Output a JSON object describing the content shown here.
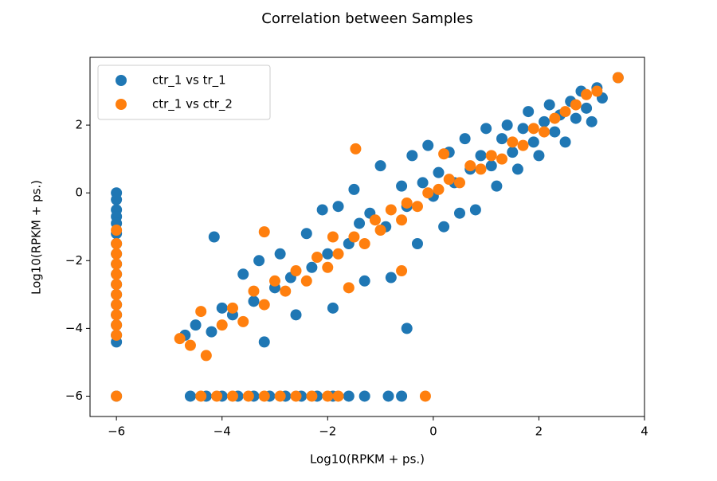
{
  "chart_data": {
    "type": "scatter",
    "title": "Correlation between Samples",
    "xlabel": "Log10(RPKM + ps.)",
    "ylabel": "Log10(RPKM + ps.)",
    "xlim": [
      -6.5,
      4.0
    ],
    "ylim": [
      -6.6,
      4.0
    ],
    "xticks": [
      {
        "value": -6,
        "label": "−6"
      },
      {
        "value": -4,
        "label": "−4"
      },
      {
        "value": -2,
        "label": "−2"
      },
      0,
      2,
      4
    ],
    "yticks": [
      {
        "value": -6,
        "label": "−6"
      },
      {
        "value": -4,
        "label": "−4"
      },
      {
        "value": -2,
        "label": "−2"
      },
      0,
      2
    ],
    "legend": "upper left",
    "series": [
      {
        "name": "ctr_1 vs tr_1",
        "color": "#1f77b4",
        "x": [
          -6,
          -6,
          -6,
          -6,
          -6,
          -6,
          -6,
          -6,
          -6,
          -6,
          -6,
          -6,
          -6,
          -6,
          -6,
          -6,
          -6,
          -6,
          -4.6,
          -4.3,
          -4.0,
          -3.7,
          -3.4,
          -3.1,
          -2.8,
          -2.5,
          -2.2,
          -1.9,
          -1.6,
          -1.3,
          -0.85,
          -0.6,
          -4.7,
          -4.5,
          -4.2,
          -4.0,
          -3.8,
          -3.6,
          -3.4,
          -3.3,
          -3.2,
          -3.0,
          -2.9,
          -2.7,
          -2.6,
          -2.4,
          -2.3,
          -2.1,
          -2.0,
          -1.9,
          -1.8,
          -1.6,
          -1.5,
          -1.4,
          -1.3,
          -1.2,
          -1.0,
          -0.9,
          -0.8,
          -0.6,
          -0.5,
          -0.4,
          -0.3,
          -0.2,
          -0.1,
          0,
          0.1,
          0.2,
          0.3,
          0.4,
          0.5,
          0.6,
          0.7,
          0.8,
          0.9,
          1.0,
          1.1,
          1.2,
          1.3,
          1.4,
          1.5,
          1.6,
          1.7,
          1.8,
          1.9,
          2.0,
          2.1,
          2.2,
          2.3,
          2.4,
          2.5,
          2.6,
          2.7,
          2.8,
          2.9,
          3.0,
          3.1,
          3.2,
          3.5,
          -4.15,
          -0.5
        ],
        "values": [
          0,
          -0.2,
          -0.5,
          -0.7,
          -0.9,
          -1.2,
          -1.5,
          -1.8,
          -2.1,
          -2.4,
          -2.7,
          -3.0,
          -3.3,
          -3.6,
          -3.9,
          -4.2,
          -4.4,
          -6,
          -6,
          -6,
          -6,
          -6,
          -6,
          -6,
          -6,
          -6,
          -6,
          -6,
          -6,
          -6,
          -6,
          -6,
          -4.2,
          -3.9,
          -4.1,
          -3.4,
          -3.6,
          -2.4,
          -3.2,
          -2.0,
          -4.4,
          -2.8,
          -1.8,
          -2.5,
          -3.6,
          -1.2,
          -2.2,
          -0.5,
          -1.8,
          -3.4,
          -0.4,
          -1.5,
          0.1,
          -0.9,
          -2.6,
          -0.6,
          0.8,
          -1.0,
          -2.5,
          0.2,
          -0.4,
          1.1,
          -1.5,
          0.3,
          1.4,
          -0.1,
          0.6,
          -1.0,
          1.2,
          0.3,
          -0.6,
          1.6,
          0.7,
          -0.5,
          1.1,
          1.9,
          0.8,
          0.2,
          1.6,
          2.0,
          1.2,
          0.7,
          1.9,
          2.4,
          1.5,
          1.1,
          2.1,
          2.6,
          1.8,
          2.3,
          1.5,
          2.7,
          2.2,
          3.0,
          2.5,
          2.1,
          3.1,
          2.8,
          3.4,
          -1.3,
          -4.0
        ]
      },
      {
        "name": "ctr_1 vs ctr_2",
        "color": "#ff7f0e",
        "x": [
          -6,
          -6,
          -6,
          -6,
          -6,
          -6,
          -6,
          -6,
          -6,
          -6,
          -6,
          -6,
          -4.4,
          -4.1,
          -3.8,
          -3.5,
          -3.2,
          -2.9,
          -2.6,
          -2.3,
          -2.0,
          -1.8,
          -0.15,
          -4.8,
          -4.6,
          -4.3,
          -4.4,
          -4.0,
          -3.8,
          -3.6,
          -3.4,
          -3.2,
          -3.0,
          -3.2,
          -2.8,
          -2.6,
          -2.4,
          -2.2,
          -2.0,
          -1.9,
          -1.8,
          -1.6,
          -1.5,
          -1.3,
          -1.1,
          -1.0,
          -0.8,
          -0.6,
          -0.5,
          -0.3,
          -0.1,
          0.1,
          0.3,
          0.5,
          0.7,
          0.9,
          1.1,
          1.3,
          1.5,
          1.7,
          1.9,
          2.1,
          2.3,
          2.5,
          2.7,
          2.9,
          3.1,
          3.5,
          -0.6,
          0.2,
          -1.47
        ],
        "values": [
          -1.1,
          -1.5,
          -1.8,
          -2.1,
          -2.4,
          -2.7,
          -3.0,
          -3.3,
          -3.6,
          -3.9,
          -4.2,
          -6,
          -6,
          -6,
          -6,
          -6,
          -6,
          -6,
          -6,
          -6,
          -6,
          -6,
          -6,
          -4.3,
          -4.5,
          -4.8,
          -3.5,
          -3.9,
          -3.4,
          -3.8,
          -2.9,
          -3.3,
          -2.6,
          -1.15,
          -2.9,
          -2.3,
          -2.6,
          -1.9,
          -2.2,
          -1.3,
          -1.8,
          -2.8,
          -1.3,
          -1.5,
          -0.8,
          -1.1,
          -0.5,
          -0.8,
          -0.3,
          -0.4,
          0.0,
          0.1,
          0.4,
          0.3,
          0.8,
          0.7,
          1.1,
          1.0,
          1.5,
          1.4,
          1.9,
          1.8,
          2.2,
          2.4,
          2.6,
          2.9,
          3.0,
          3.4,
          -2.3,
          1.15,
          1.3
        ]
      }
    ]
  }
}
